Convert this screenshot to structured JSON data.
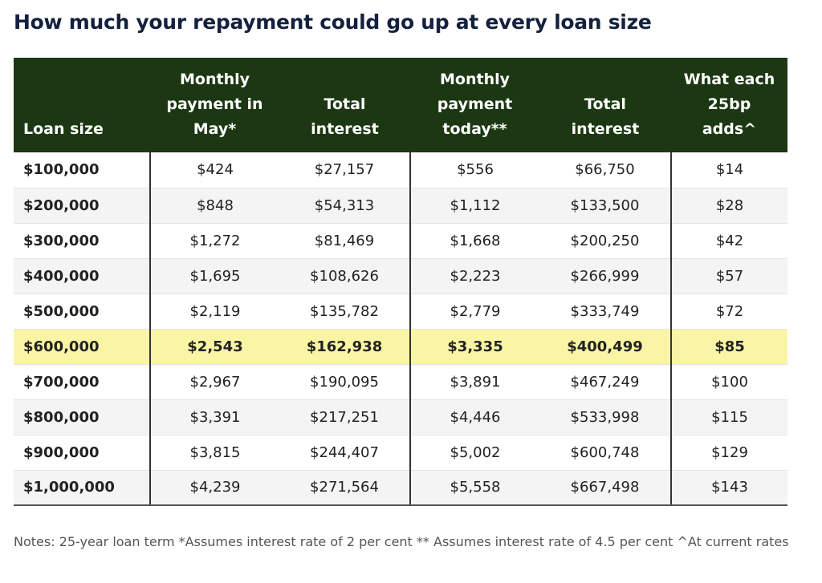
{
  "title": "How much your repayment could go up at every loan size",
  "columns": [
    "Loan size",
    "Monthly\npayment in\nMay*",
    "Total\ninterest",
    "Monthly\npayment\ntoday**",
    "Total\ninterest",
    "What each\n25bp\nadds^"
  ],
  "rows": [
    [
      "$100,000",
      "$424",
      "$27,157",
      "$556",
      "$66,750",
      "$14"
    ],
    [
      "$200,000",
      "$848",
      "$54,313",
      "$1,112",
      "$133,500",
      "$28"
    ],
    [
      "$300,000",
      "$1,272",
      "$81,469",
      "$1,668",
      "$200,250",
      "$42"
    ],
    [
      "$400,000",
      "$1,695",
      "$108,626",
      "$2,223",
      "$266,999",
      "$57"
    ],
    [
      "$500,000",
      "$2,119",
      "$135,782",
      "$2,779",
      "$333,749",
      "$72"
    ],
    [
      "$600,000",
      "$2,543",
      "$162,938",
      "$3,335",
      "$400,499",
      "$85"
    ],
    [
      "$700,000",
      "$2,967",
      "$190,095",
      "$3,891",
      "$467,249",
      "$100"
    ],
    [
      "$800,000",
      "$3,391",
      "$217,251",
      "$4,446",
      "$533,998",
      "$115"
    ],
    [
      "$900,000",
      "$3,815",
      "$244,407",
      "$5,002",
      "$600,748",
      "$129"
    ],
    [
      "$1,000,000",
      "$4,239",
      "$271,564",
      "$5,558",
      "$667,498",
      "$143"
    ]
  ],
  "highlighted_row": "$600,000",
  "notes": "Notes: 25-year loan term *Assumes interest rate of 2 per cent ** Assumes interest rate of 4.5 per cent ^At current rates",
  "colors": {
    "header_background": "#1c3812",
    "highlight_background": "#f9f5a4",
    "title_color": "#14213d"
  },
  "chart_data": {
    "type": "table",
    "title": "How much your repayment could go up at every loan size",
    "columns": [
      "Loan size",
      "Monthly payment in May*",
      "Total interest",
      "Monthly payment today**",
      "Total interest",
      "What each 25bp adds^"
    ],
    "rows": [
      [
        100000,
        424,
        27157,
        556,
        66750,
        14
      ],
      [
        200000,
        848,
        54313,
        1112,
        133500,
        28
      ],
      [
        300000,
        1272,
        81469,
        1668,
        200250,
        42
      ],
      [
        400000,
        1695,
        108626,
        2223,
        266999,
        57
      ],
      [
        500000,
        2119,
        135782,
        2779,
        333749,
        72
      ],
      [
        600000,
        2543,
        162938,
        3335,
        400499,
        85
      ],
      [
        700000,
        2967,
        190095,
        3891,
        467249,
        100
      ],
      [
        800000,
        3391,
        217251,
        4446,
        533998,
        115
      ],
      [
        900000,
        3815,
        244407,
        5002,
        600748,
        129
      ],
      [
        1000000,
        4239,
        271564,
        5558,
        667498,
        143
      ]
    ]
  }
}
